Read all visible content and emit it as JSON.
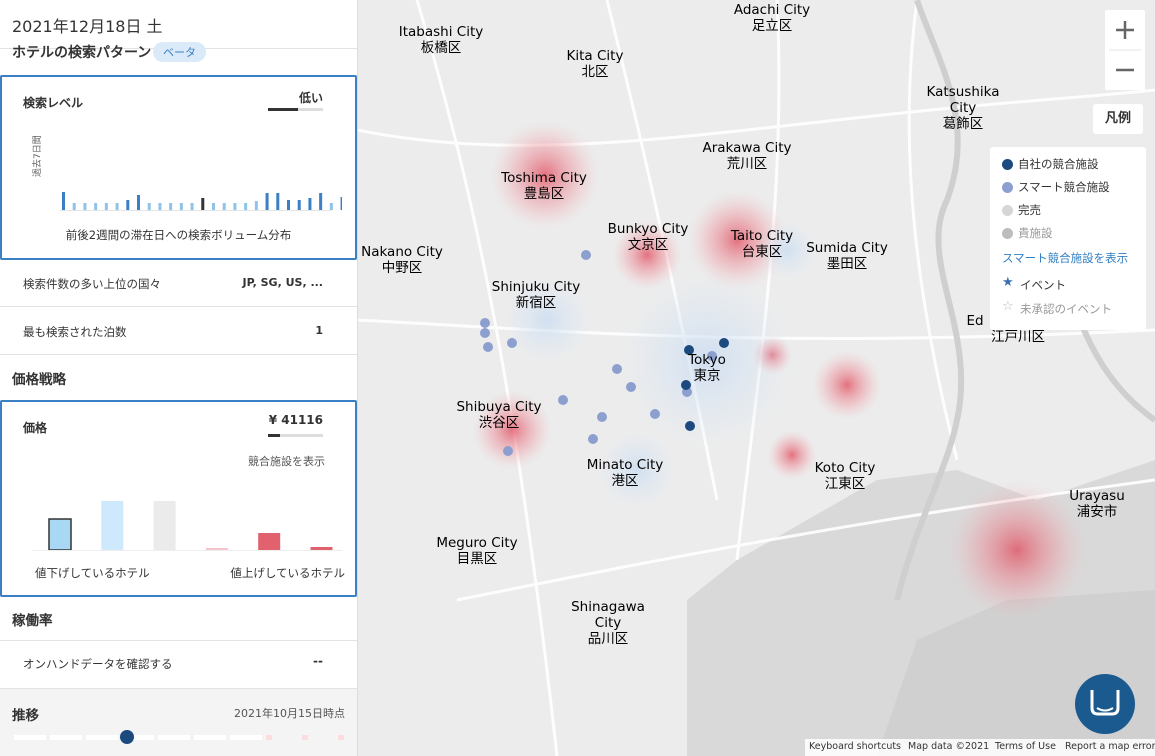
{
  "header": {
    "date": "2021年12月18日 土"
  },
  "search_pattern": {
    "title": "ホテルの検索パターン",
    "badge": "ベータ"
  },
  "search_level": {
    "title": "検索レベル",
    "value": "低い",
    "y_label": "過去7日間",
    "caption": "前後2週間の滞在日への検索ボリューム分布",
    "bars": [
      18,
      7,
      7,
      7,
      7,
      7,
      10,
      15,
      7,
      7,
      7,
      7,
      7,
      12,
      7,
      7,
      7,
      7,
      9,
      17,
      17,
      10,
      10,
      12,
      17,
      7,
      13,
      8
    ]
  },
  "rows": [
    {
      "label": "検索件数の多い上位の国々",
      "value": "JP, SG, US, ..."
    },
    {
      "label": "最も検索された泊数",
      "value": "1"
    }
  ],
  "pricing": {
    "title": "価格戦略",
    "price": {
      "title": "価格",
      "value": "¥ 41116",
      "link": "競合施設を表示",
      "bars": [
        31,
        49,
        49,
        2,
        17,
        3
      ],
      "left_label": "値下げしているホテル",
      "right_label": "値上げしているホテル"
    }
  },
  "occupancy": {
    "title": "稼働率",
    "row_label": "オンハンドデータを確認する",
    "row_value": "--"
  },
  "trend": {
    "title": "推移",
    "date": "2021年10月15日時点"
  },
  "map": {
    "labels": [
      [
        "Adachi City",
        "足立区"
      ],
      [
        "Itabashi City",
        "板橋区"
      ],
      [
        "Kita City",
        "北区"
      ],
      [
        "Katsushika",
        "City",
        "葛飾区"
      ],
      [
        "Arakawa City",
        "荒川区"
      ],
      [
        "Toshima City",
        "豊島区"
      ],
      [
        "Bunkyo City",
        "文京区"
      ],
      [
        "Taito City",
        "台東区"
      ],
      [
        "Sumida City",
        "墨田区"
      ],
      [
        "Nakano City",
        "中野区"
      ],
      [
        "Shinjuku City",
        "新宿区"
      ],
      [
        "Tokyo",
        "東京"
      ],
      [
        "Shibuya City",
        "渋谷区"
      ],
      [
        "Minato City",
        "港区"
      ],
      [
        "Koto City",
        "江東区"
      ],
      [
        "Urayasu",
        "浦安市"
      ],
      [
        "Meguro City",
        "目黒区"
      ],
      [
        "Shinagawa",
        "City",
        "品川区"
      ],
      [
        "Ed",
        "江戸川区"
      ]
    ],
    "legend": {
      "button": "凡例",
      "items": [
        "自社の競合施設",
        "スマート競合施設",
        "完売",
        "貴施設"
      ],
      "link": "スマート競合施設を表示",
      "events": [
        "イベント",
        "未承認のイベント"
      ]
    },
    "footer": [
      "Keyboard shortcuts",
      "Map data ©2021",
      "Terms of Use",
      "Report a map error"
    ]
  }
}
